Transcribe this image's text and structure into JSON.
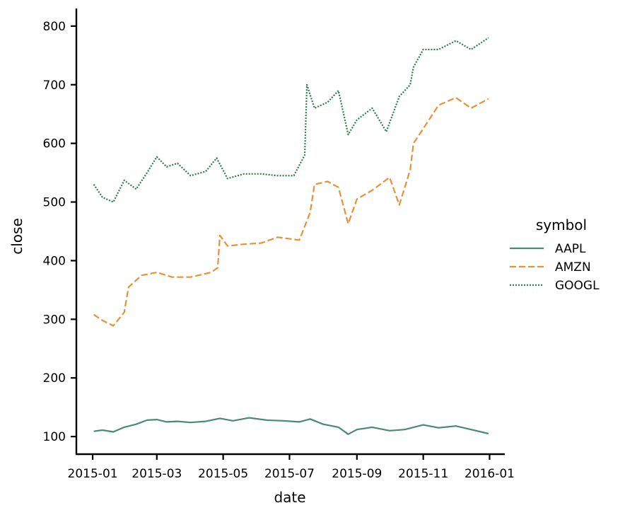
{
  "chart_data": {
    "type": "line",
    "title": "",
    "xlabel": "date",
    "ylabel": "close",
    "x_range": [
      "2014-12-17",
      "2016-01-15"
    ],
    "ylim": [
      70,
      830
    ],
    "grid": false,
    "legend_placement": "right",
    "legend_title": "symbol",
    "x_ticks": [
      {
        "value": "2015-01-01",
        "label": "2015-01"
      },
      {
        "value": "2015-03-01",
        "label": "2015-03"
      },
      {
        "value": "2015-05-01",
        "label": "2015-05"
      },
      {
        "value": "2015-07-01",
        "label": "2015-07"
      },
      {
        "value": "2015-09-01",
        "label": "2015-09"
      },
      {
        "value": "2015-11-01",
        "label": "2015-11"
      },
      {
        "value": "2016-01-01",
        "label": "2016-01"
      }
    ],
    "y_ticks": [
      100,
      200,
      300,
      400,
      500,
      600,
      700,
      800
    ],
    "series": [
      {
        "name": "AAPL",
        "color": "#4a8a72",
        "style": "solid",
        "points": [
          [
            "2015-01-02",
            109
          ],
          [
            "2015-01-10",
            111
          ],
          [
            "2015-01-20",
            108
          ],
          [
            "2015-01-30",
            116
          ],
          [
            "2015-02-10",
            121
          ],
          [
            "2015-02-20",
            128
          ],
          [
            "2015-03-01",
            129
          ],
          [
            "2015-03-10",
            125
          ],
          [
            "2015-03-20",
            126
          ],
          [
            "2015-04-01",
            124
          ],
          [
            "2015-04-15",
            126
          ],
          [
            "2015-04-28",
            131
          ],
          [
            "2015-05-10",
            127
          ],
          [
            "2015-05-25",
            132
          ],
          [
            "2015-06-10",
            128
          ],
          [
            "2015-06-25",
            127
          ],
          [
            "2015-07-10",
            125
          ],
          [
            "2015-07-20",
            130
          ],
          [
            "2015-08-01",
            121
          ],
          [
            "2015-08-15",
            116
          ],
          [
            "2015-08-24",
            104
          ],
          [
            "2015-09-01",
            112
          ],
          [
            "2015-09-15",
            116
          ],
          [
            "2015-10-01",
            110
          ],
          [
            "2015-10-15",
            112
          ],
          [
            "2015-11-01",
            120
          ],
          [
            "2015-11-15",
            115
          ],
          [
            "2015-12-01",
            118
          ],
          [
            "2015-12-15",
            112
          ],
          [
            "2015-12-31",
            105
          ]
        ]
      },
      {
        "name": "AMZN",
        "color": "#e8903a",
        "style": "dashed",
        "points": [
          [
            "2015-01-02",
            308
          ],
          [
            "2015-01-10",
            298
          ],
          [
            "2015-01-20",
            289
          ],
          [
            "2015-01-30",
            312
          ],
          [
            "2015-02-03",
            355
          ],
          [
            "2015-02-15",
            375
          ],
          [
            "2015-03-01",
            380
          ],
          [
            "2015-03-15",
            372
          ],
          [
            "2015-04-01",
            372
          ],
          [
            "2015-04-20",
            380
          ],
          [
            "2015-04-26",
            388
          ],
          [
            "2015-04-28",
            443
          ],
          [
            "2015-05-05",
            425
          ],
          [
            "2015-05-20",
            428
          ],
          [
            "2015-06-05",
            430
          ],
          [
            "2015-06-20",
            440
          ],
          [
            "2015-07-10",
            435
          ],
          [
            "2015-07-20",
            482
          ],
          [
            "2015-07-24",
            530
          ],
          [
            "2015-08-05",
            535
          ],
          [
            "2015-08-15",
            525
          ],
          [
            "2015-08-24",
            463
          ],
          [
            "2015-09-01",
            505
          ],
          [
            "2015-09-15",
            520
          ],
          [
            "2015-10-01",
            542
          ],
          [
            "2015-10-10",
            495
          ],
          [
            "2015-10-20",
            555
          ],
          [
            "2015-10-23",
            600
          ],
          [
            "2015-11-01",
            625
          ],
          [
            "2015-11-15",
            665
          ],
          [
            "2015-12-01",
            678
          ],
          [
            "2015-12-15",
            660
          ],
          [
            "2015-12-31",
            676
          ]
        ]
      },
      {
        "name": "GOOGL",
        "color": "#2d7a50",
        "style": "dotted",
        "points": [
          [
            "2015-01-02",
            530
          ],
          [
            "2015-01-10",
            508
          ],
          [
            "2015-01-20",
            500
          ],
          [
            "2015-01-30",
            537
          ],
          [
            "2015-02-10",
            522
          ],
          [
            "2015-02-20",
            550
          ],
          [
            "2015-03-01",
            577
          ],
          [
            "2015-03-10",
            560
          ],
          [
            "2015-03-20",
            566
          ],
          [
            "2015-04-01",
            545
          ],
          [
            "2015-04-15",
            552
          ],
          [
            "2015-04-25",
            575
          ],
          [
            "2015-05-05",
            540
          ],
          [
            "2015-05-20",
            548
          ],
          [
            "2015-06-05",
            548
          ],
          [
            "2015-06-20",
            545
          ],
          [
            "2015-07-05",
            545
          ],
          [
            "2015-07-15",
            580
          ],
          [
            "2015-07-17",
            700
          ],
          [
            "2015-07-24",
            660
          ],
          [
            "2015-08-05",
            670
          ],
          [
            "2015-08-15",
            690
          ],
          [
            "2015-08-24",
            615
          ],
          [
            "2015-09-01",
            640
          ],
          [
            "2015-09-15",
            660
          ],
          [
            "2015-09-28",
            620
          ],
          [
            "2015-10-10",
            680
          ],
          [
            "2015-10-20",
            700
          ],
          [
            "2015-10-23",
            730
          ],
          [
            "2015-11-01",
            760
          ],
          [
            "2015-11-15",
            760
          ],
          [
            "2015-12-01",
            775
          ],
          [
            "2015-12-15",
            760
          ],
          [
            "2015-12-31",
            780
          ]
        ]
      }
    ]
  }
}
